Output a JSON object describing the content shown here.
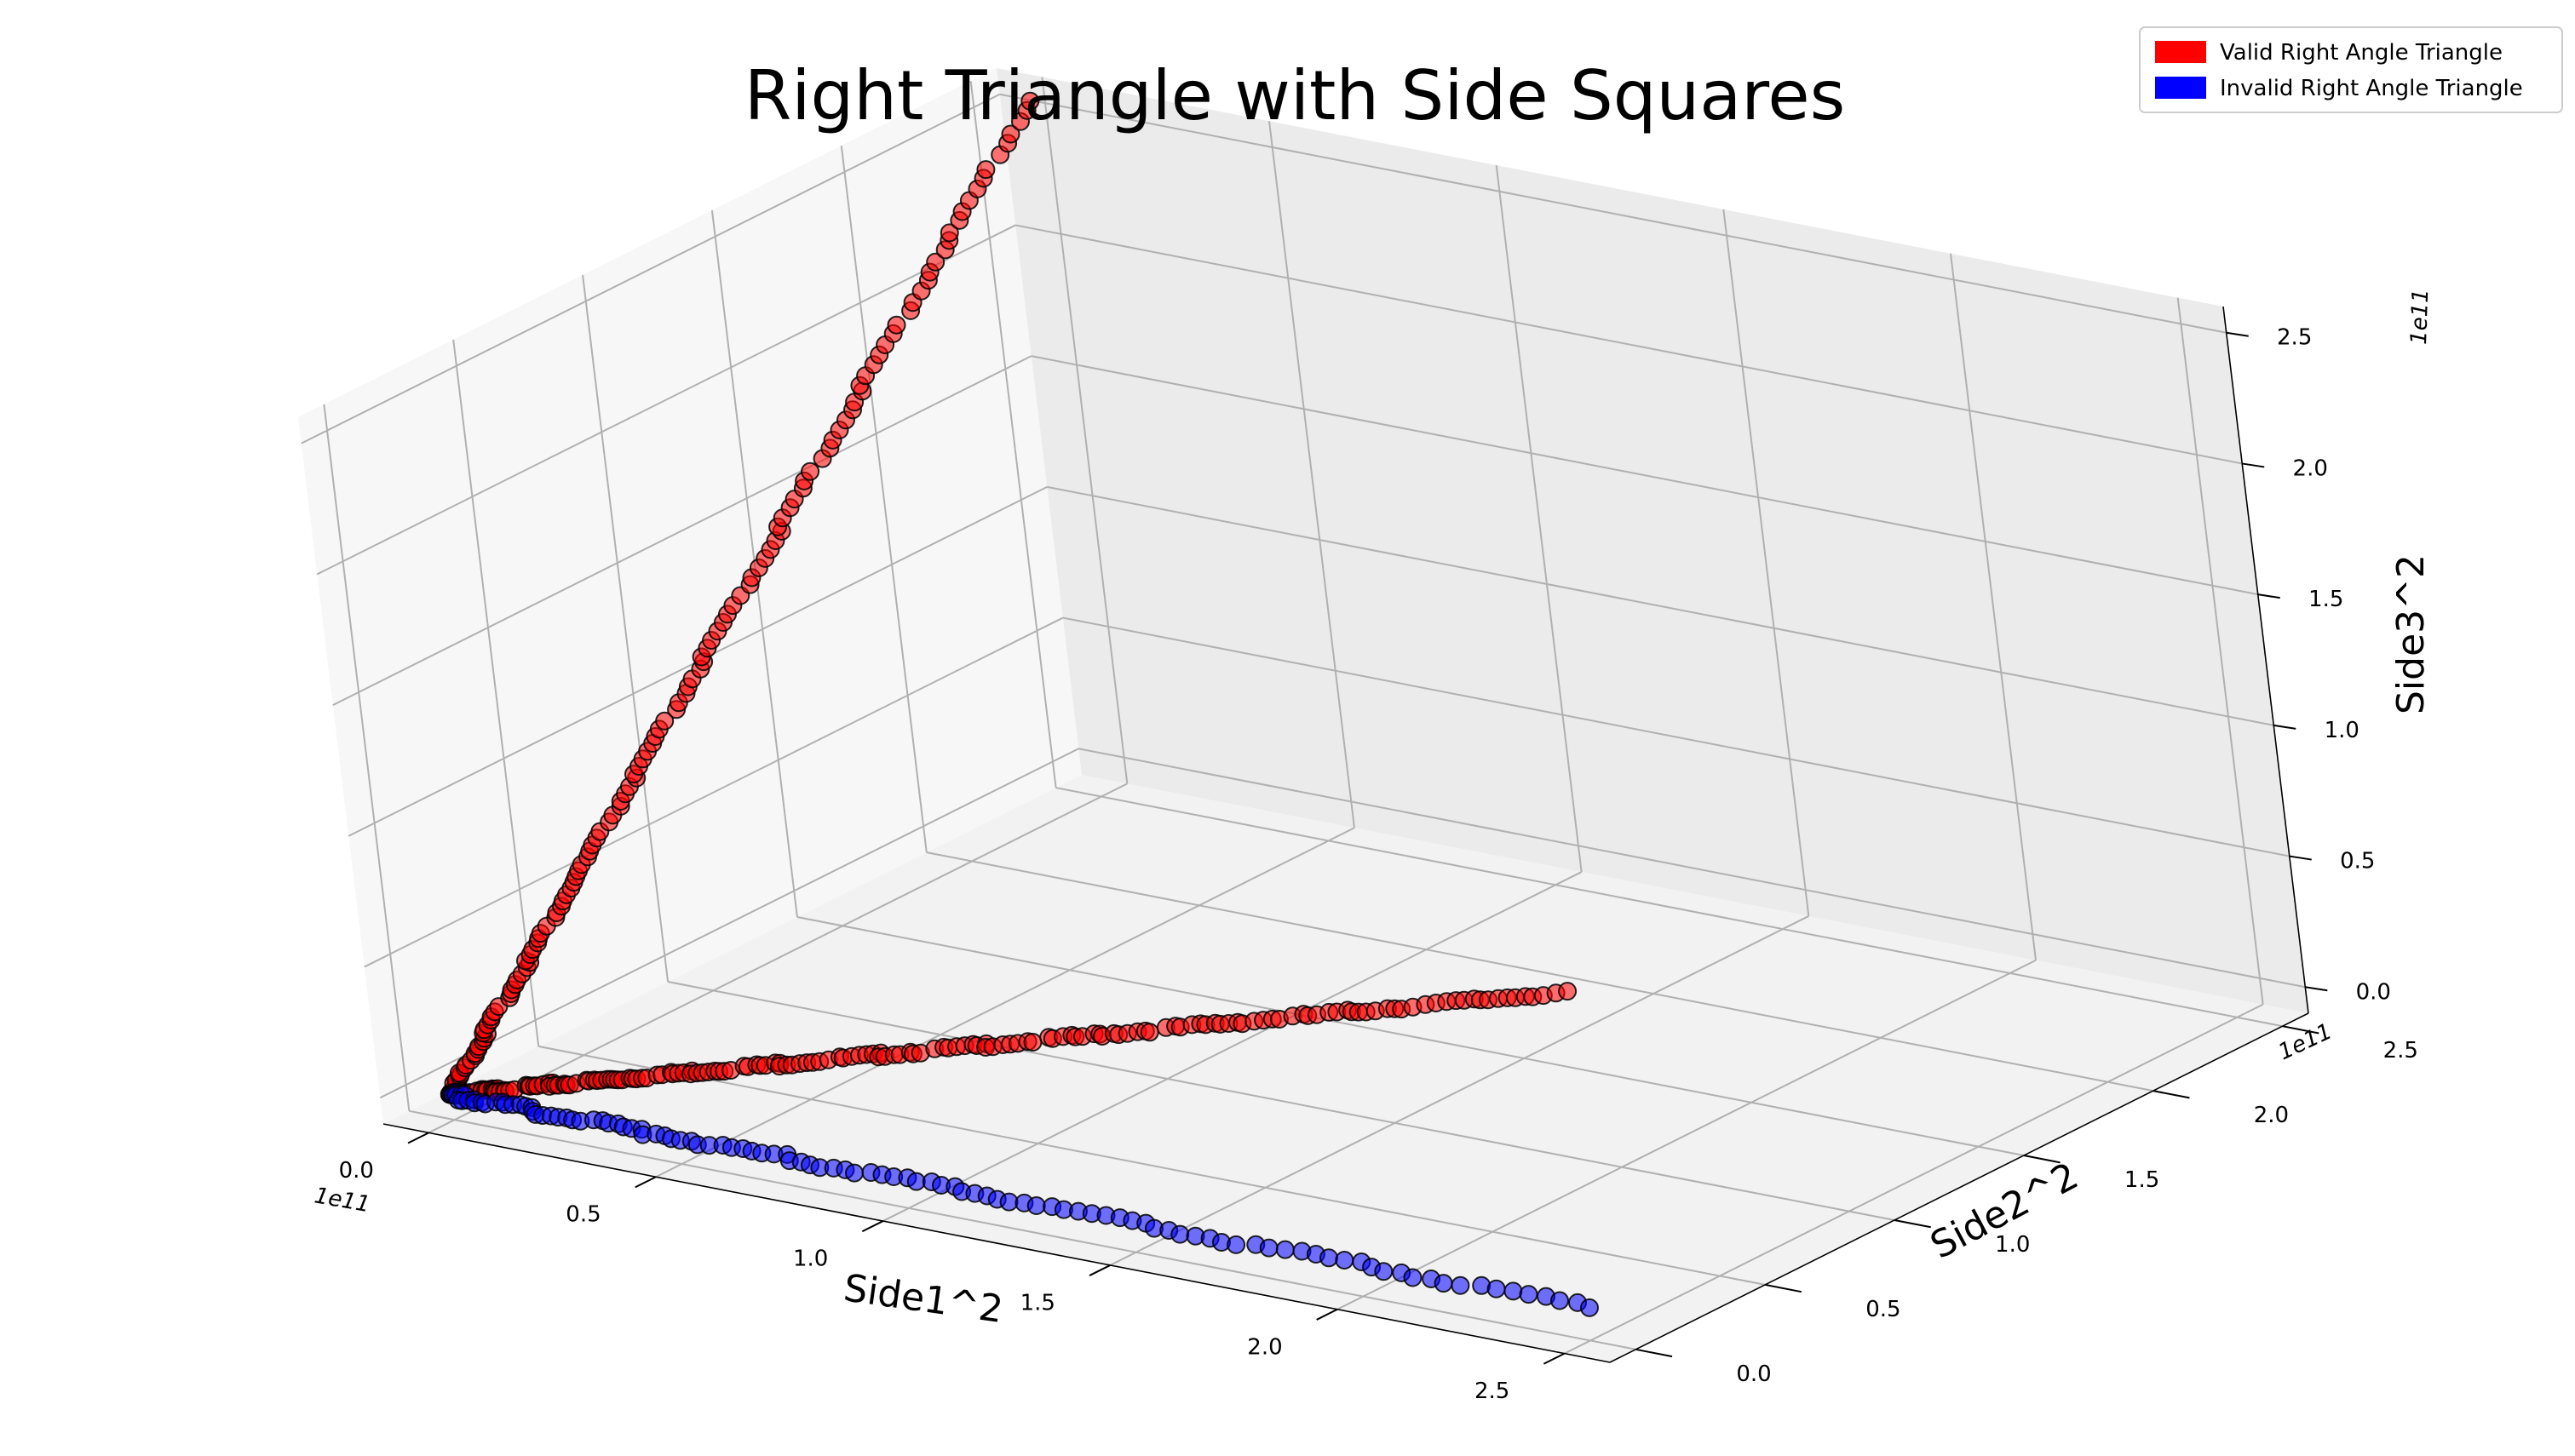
{
  "chart_data": {
    "type": "scatter3d",
    "title": "Right Triangle with Side Squares",
    "xlabel": "Side1^2",
    "ylabel": "Side2^2",
    "zlabel": "Side3^2",
    "x_offset": "1e11",
    "y_offset": "1e11",
    "z_offset": "1e11",
    "x_ticks": [
      "0.0",
      "0.5",
      "1.0",
      "1.5",
      "2.0",
      "2.5"
    ],
    "y_ticks": [
      "0.0",
      "0.5",
      "1.0",
      "1.5",
      "2.0",
      "2.5"
    ],
    "z_ticks": [
      "0.0",
      "0.5",
      "1.0",
      "1.5",
      "2.0",
      "2.5"
    ],
    "xlim": [
      -0.1,
      2.6
    ],
    "ylim": [
      -0.1,
      2.6
    ],
    "zlim": [
      -0.1,
      2.6
    ],
    "legend_position": "top-right",
    "series": [
      {
        "name": "Valid Right Angle Triangle",
        "color": "#ff0000",
        "segments": [
          {
            "from": [
              0.001,
              0.001,
              0.002
            ],
            "to": [
              0.01,
              2.55,
              2.56
            ],
            "count": 140
          },
          {
            "from": [
              0.001,
              0.001,
              0.002
            ],
            "to": [
              2.55,
              0.01,
              1.25
            ],
            "count": 180
          }
        ]
      },
      {
        "name": "Invalid Right Angle Triangle",
        "color": "#0000ff",
        "segments": [
          {
            "from": [
              0.0,
              0.0,
              0.0
            ],
            "to": [
              2.5,
              0.05,
              0.0
            ],
            "count": 110
          }
        ]
      }
    ]
  }
}
